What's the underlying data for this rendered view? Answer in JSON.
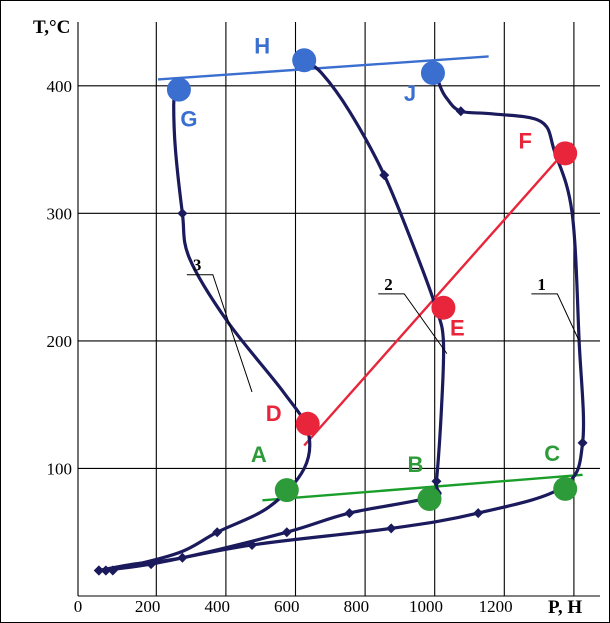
{
  "chart_data": {
    "type": "line",
    "xlabel": "P, Н",
    "ylabel": "T,°C",
    "xlim": [
      0,
      1500
    ],
    "ylim": [
      0,
      450
    ],
    "x_ticks": [
      "0",
      "200",
      "400",
      "600",
      "800",
      "1000",
      "1200"
    ],
    "y_ticks": [
      "100",
      "200",
      "300",
      "400"
    ],
    "x_tick_values": [
      0,
      200,
      400,
      600,
      800,
      1000,
      1200
    ],
    "y_tick_values": [
      100,
      200,
      300,
      400
    ],
    "x_gridlines": [
      225,
      425,
      625,
      825,
      1025,
      1225,
      1425
    ],
    "y_gridlines": [
      100,
      200,
      300,
      400
    ],
    "grid": true,
    "series": [
      {
        "name": "1",
        "color": "#1a1a5c",
        "points": [
          [
            60,
            20
          ],
          [
            100,
            21
          ],
          [
            210,
            25
          ],
          [
            500,
            40
          ],
          [
            900,
            53
          ],
          [
            1150,
            65
          ],
          [
            1390,
            85
          ],
          [
            1450,
            120
          ],
          [
            1440,
            200
          ],
          [
            1420,
            300
          ],
          [
            1370,
            348
          ],
          [
            1330,
            372
          ],
          [
            1190,
            378
          ],
          [
            1100,
            380
          ],
          [
            1060,
            390
          ],
          [
            1040,
            400
          ],
          [
            1030,
            411
          ]
        ],
        "markers": [
          [
            60,
            20
          ],
          [
            80,
            20
          ],
          [
            100,
            20
          ],
          [
            210,
            25
          ],
          [
            500,
            40
          ],
          [
            900,
            53
          ],
          [
            1150,
            65
          ],
          [
            1450,
            120
          ],
          [
            1100,
            380
          ]
        ]
      },
      {
        "name": "2",
        "color": "#1a1a5c",
        "points": [
          [
            60,
            20
          ],
          [
            160,
            25
          ],
          [
            300,
            30
          ],
          [
            600,
            50
          ],
          [
            780,
            65
          ],
          [
            1020,
            78
          ],
          [
            1030,
            90
          ],
          [
            1045,
            150
          ],
          [
            1050,
            200
          ],
          [
            1030,
            225
          ],
          [
            970,
            270
          ],
          [
            880,
            330
          ],
          [
            780,
            380
          ],
          [
            700,
            410
          ],
          [
            650,
            420
          ]
        ],
        "markers": [
          [
            60,
            20
          ],
          [
            80,
            20
          ],
          [
            300,
            30
          ],
          [
            600,
            50
          ],
          [
            780,
            65
          ],
          [
            1030,
            90
          ],
          [
            880,
            330
          ]
        ]
      },
      {
        "name": "3",
        "color": "#1a1a5c",
        "points": [
          [
            60,
            20
          ],
          [
            170,
            25
          ],
          [
            300,
            35
          ],
          [
            400,
            50
          ],
          [
            550,
            70
          ],
          [
            650,
            100
          ],
          [
            660,
            130
          ],
          [
            590,
            160
          ],
          [
            430,
            215
          ],
          [
            320,
            265
          ],
          [
            300,
            300
          ],
          [
            280,
            350
          ],
          [
            275,
            385
          ],
          [
            280,
            398
          ]
        ],
        "markers": [
          [
            60,
            20
          ],
          [
            400,
            50
          ],
          [
            300,
            300
          ]
        ]
      }
    ],
    "reference_lines": [
      {
        "color": "#1a9e2a",
        "from": [
          530,
          75
        ],
        "to": [
          1450,
          95
        ]
      },
      {
        "color": "#e8253a",
        "from": [
          650,
          118
        ],
        "to": [
          1420,
          355
        ]
      },
      {
        "color": "#3a6fd0",
        "from": [
          230,
          405
        ],
        "to": [
          1180,
          423
        ]
      }
    ],
    "points": [
      {
        "label": "A",
        "x": 600,
        "y": 83,
        "color": "#2e9b3a",
        "label_dx": -28,
        "label_dy": -28
      },
      {
        "label": "B",
        "x": 1010,
        "y": 76,
        "color": "#2e9b3a",
        "label_dx": -14,
        "label_dy": -27
      },
      {
        "label": "C",
        "x": 1400,
        "y": 84,
        "color": "#2e9b3a",
        "label_dx": -13,
        "label_dy": -28
      },
      {
        "label": "D",
        "x": 660,
        "y": 135,
        "color": "#e8253a",
        "label_dx": -34,
        "label_dy": -3
      },
      {
        "label": "E",
        "x": 1050,
        "y": 226,
        "color": "#e8253a",
        "label_dx": 14,
        "label_dy": 28
      },
      {
        "label": "F",
        "x": 1400,
        "y": 347,
        "color": "#e8253a",
        "label_dx": -40,
        "label_dy": -5
      },
      {
        "label": "G",
        "x": 290,
        "y": 397,
        "color": "#3a6fd0",
        "label_dx": 10,
        "label_dy": 37
      },
      {
        "label": "H",
        "x": 650,
        "y": 420,
        "color": "#3a6fd0",
        "label_dx": -42,
        "label_dy": -7
      },
      {
        "label": "J",
        "x": 1020,
        "y": 410,
        "color": "#3a6fd0",
        "label_dx": -23,
        "label_dy": 28
      }
    ],
    "curve_labels": [
      {
        "text": "1",
        "at": [
          1320,
          240
        ],
        "to": [
          1440,
          200
        ]
      },
      {
        "text": "2",
        "at": [
          880,
          240
        ],
        "to": [
          1060,
          190
        ]
      },
      {
        "text": "3",
        "at": [
          330,
          255
        ],
        "to": [
          500,
          160
        ]
      }
    ]
  }
}
